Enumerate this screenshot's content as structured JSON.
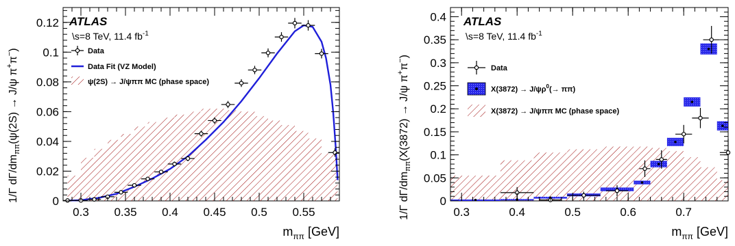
{
  "colors": {
    "fit": "#1f1fd9",
    "mc_hatch": "#a01010",
    "x_band": "#2929e6",
    "axis": "#000000"
  },
  "chart_data": [
    {
      "type": "scatter",
      "panel": "left",
      "atlas_label": "ATLAS",
      "energy_label": "\\s=8 TeV, 11.4 fb",
      "energy_sup": "-1",
      "ylabel": "1/Γ dΓ/dm",
      "ylabel_sub": "ππ",
      "ylabel_tail": "(ψ(2S) → J/ψ π",
      "ylabel_sup1": "+",
      "ylabel_pi": "π",
      "ylabel_sup2": "−",
      "ylabel_close": ")",
      "xlabel": "m",
      "xlabel_sub": "ππ",
      "xlabel_unit": " [GeV]",
      "xlim": [
        0.28,
        0.59
      ],
      "ylim": [
        0,
        0.13
      ],
      "xticks": [
        "0.3",
        "0.35",
        "0.4",
        "0.45",
        "0.5",
        "0.55"
      ],
      "xtick_values": [
        0.3,
        0.35,
        0.4,
        0.45,
        0.5,
        0.55
      ],
      "yticks": [
        "0",
        "0.02",
        "0.04",
        "0.06",
        "0.08",
        "0.1",
        "0.12"
      ],
      "ytick_values": [
        0,
        0.02,
        0.04,
        0.06,
        0.08,
        0.1,
        0.12
      ],
      "legend": [
        {
          "kind": "data",
          "label": "Data"
        },
        {
          "kind": "line",
          "label": "Data Fit (VZ Model)"
        },
        {
          "kind": "hatch",
          "label": "ψ(2S) → J/ψππ MC (phase space)"
        }
      ],
      "legend_position": "top-left",
      "data": {
        "x": [
          0.285,
          0.3,
          0.315,
          0.33,
          0.345,
          0.36,
          0.375,
          0.39,
          0.405,
          0.42,
          0.435,
          0.45,
          0.465,
          0.48,
          0.495,
          0.51,
          0.525,
          0.54,
          0.555,
          0.57,
          0.585
        ],
        "y": [
          0.0003,
          0.0003,
          0.001,
          0.0028,
          0.0058,
          0.0105,
          0.0148,
          0.0195,
          0.0248,
          0.0285,
          0.0452,
          0.054,
          0.0648,
          0.0792,
          0.088,
          0.0995,
          0.1102,
          0.1195,
          0.118,
          0.099,
          0.0325
        ],
        "yerr": [
          0.0004,
          0.0004,
          0.0006,
          0.0008,
          0.001,
          0.0012,
          0.0014,
          0.0015,
          0.0016,
          0.0018,
          0.002,
          0.0022,
          0.0024,
          0.0026,
          0.0028,
          0.003,
          0.0032,
          0.0035,
          0.0035,
          0.0032,
          0.0028
        ],
        "xerr": 0.0075
      },
      "fit": {
        "x": [
          0.285,
          0.3,
          0.32,
          0.34,
          0.36,
          0.38,
          0.4,
          0.42,
          0.44,
          0.46,
          0.48,
          0.5,
          0.52,
          0.54,
          0.55,
          0.56,
          0.57,
          0.575,
          0.58,
          0.583,
          0.586,
          0.588
        ],
        "y": [
          0.0002,
          0.0005,
          0.002,
          0.0048,
          0.0095,
          0.015,
          0.0215,
          0.03,
          0.041,
          0.053,
          0.067,
          0.0825,
          0.099,
          0.114,
          0.118,
          0.117,
          0.107,
          0.096,
          0.078,
          0.06,
          0.035,
          0.014
        ]
      },
      "mc": {
        "edges": [
          0.285,
          0.3,
          0.315,
          0.33,
          0.345,
          0.36,
          0.375,
          0.39,
          0.405,
          0.42,
          0.435,
          0.45,
          0.465,
          0.48,
          0.495,
          0.51,
          0.525,
          0.54,
          0.555,
          0.57,
          0.588
        ],
        "values": [
          0.017,
          0.029,
          0.035,
          0.041,
          0.045,
          0.05,
          0.053,
          0.056,
          0.058,
          0.06,
          0.062,
          0.062,
          0.061,
          0.06,
          0.057,
          0.054,
          0.051,
          0.047,
          0.042,
          0.032
        ]
      }
    },
    {
      "type": "scatter",
      "panel": "right",
      "atlas_label": "ATLAS",
      "energy_label": "\\s=8 TeV, 11.4 fb",
      "energy_sup": "-1",
      "ylabel": "1/Γ dΓ/dm",
      "ylabel_sub": "ππ",
      "ylabel_tail": "(X(3872) → J/ψ π",
      "ylabel_sup1": "+",
      "ylabel_pi": "π",
      "ylabel_sup2": "−",
      "ylabel_close": ")",
      "xlabel": "m",
      "xlabel_sub": "ππ",
      "xlabel_unit": " [GeV]",
      "xlim": [
        0.28,
        0.78
      ],
      "ylim": [
        0,
        0.42
      ],
      "xticks": [
        "0.3",
        "0.4",
        "0.5",
        "0.6",
        "0.7"
      ],
      "xtick_values": [
        0.3,
        0.4,
        0.5,
        0.6,
        0.7
      ],
      "yticks": [
        "0",
        "0.05",
        "0.1",
        "0.15",
        "0.2",
        "0.25",
        "0.3",
        "0.35",
        "0.4"
      ],
      "ytick_values": [
        0,
        0.05,
        0.1,
        0.15,
        0.2,
        0.25,
        0.3,
        0.35,
        0.4
      ],
      "legend": [
        {
          "kind": "data",
          "label": "Data"
        },
        {
          "kind": "band",
          "label": "X(3872) → J/ψρ",
          "sup": "0",
          "tail": "(→ ππ)"
        },
        {
          "kind": "hatch",
          "label": "X(3872) → J/ψππ MC (phase space)"
        }
      ],
      "legend_position": "top-left",
      "data": {
        "x": [
          0.4,
          0.46,
          0.52,
          0.58,
          0.63,
          0.66,
          0.7,
          0.73,
          0.75,
          0.78
        ],
        "y": [
          0.018,
          0.002,
          0.012,
          0.022,
          0.07,
          0.09,
          0.145,
          0.18,
          0.35,
          0.105
        ],
        "yerr": [
          0.012,
          0.004,
          0.008,
          0.012,
          0.018,
          0.02,
          0.02,
          0.022,
          0.03,
          0.03
        ],
        "xerr": [
          0.03,
          0.02,
          0.03,
          0.02,
          0.01,
          0.01,
          0.015,
          0.015,
          0.015,
          0.015
        ]
      },
      "model": {
        "edges": [
          0.28,
          0.37,
          0.43,
          0.49,
          0.55,
          0.61,
          0.64,
          0.67,
          0.7,
          0.73,
          0.76,
          0.78
        ],
        "values": [
          0.002,
          0.003,
          0.007,
          0.013,
          0.025,
          0.04,
          0.08,
          0.128,
          0.215,
          0.33,
          0.163
        ],
        "err": [
          0.001,
          0.001,
          0.002,
          0.003,
          0.004,
          0.004,
          0.007,
          0.009,
          0.01,
          0.012,
          0.01
        ]
      },
      "mc": {
        "edges": [
          0.28,
          0.37,
          0.43,
          0.49,
          0.55,
          0.61,
          0.64,
          0.67,
          0.7,
          0.73,
          0.76,
          0.78
        ],
        "values": [
          0.055,
          0.088,
          0.105,
          0.112,
          0.118,
          0.118,
          0.115,
          0.108,
          0.095,
          0.073,
          0.045
        ]
      }
    }
  ]
}
